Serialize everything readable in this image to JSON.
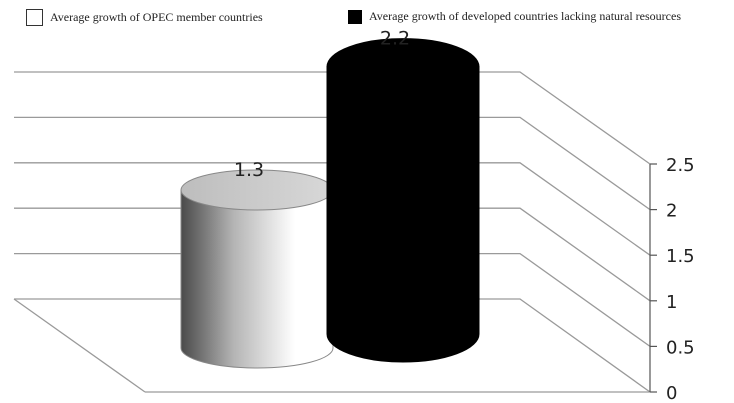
{
  "chart_data": {
    "type": "bar",
    "style": "3d-cylinder",
    "categories": [
      ""
    ],
    "series": [
      {
        "name": "Average growth of OPEC member countries",
        "values": [
          1.3
        ],
        "color": "#ffffff"
      },
      {
        "name": "Average growth of developed countries lacking natural resources",
        "values": [
          2.2
        ],
        "color": "#000000"
      }
    ],
    "data_labels": [
      "1.3",
      "2.2"
    ],
    "ylim": [
      0,
      2.5
    ],
    "yticks": [
      0,
      0.5,
      1,
      1.5,
      2,
      2.5
    ],
    "ytick_labels": [
      "0",
      "0.5",
      "1",
      "1.5",
      "2",
      "2.5"
    ],
    "y_axis_side": "right",
    "grid": true,
    "legend_position": "top"
  }
}
